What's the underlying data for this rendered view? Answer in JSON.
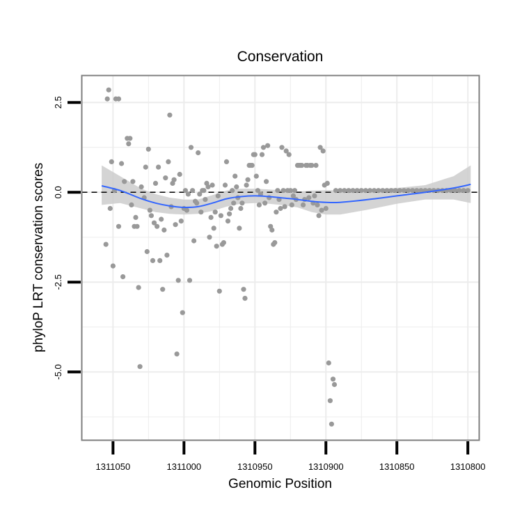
{
  "chart_data": {
    "type": "scatter",
    "title": "Conservation",
    "xlabel": "Genomic Position",
    "ylabel": "phyloP LRT conservation scores",
    "xlim": [
      1311072,
      1310792
    ],
    "ylim": [
      -6.9,
      3.25
    ],
    "x_reversed": true,
    "x_ticks": [
      1311050,
      1311000,
      1310950,
      1310900,
      1310850,
      1310800
    ],
    "x_tick_labels": [
      "1311050",
      "1311000",
      "1310950",
      "1310900",
      "1310850",
      "1310800"
    ],
    "y_ticks": [
      2.5,
      0.0,
      -2.5,
      -5.0
    ],
    "y_tick_labels": [
      "2.5",
      "0.0",
      "-2.5",
      "-5.0"
    ],
    "reference_line": {
      "y": 0,
      "style": "dashed"
    },
    "colors": {
      "points": "#999999",
      "smooth": "#3366ff",
      "band": "#cccccc",
      "panel_border": "#7f7f7f",
      "grid": "#ececec"
    },
    "points": [
      [
        1311054,
        2.6
      ],
      [
        1311053,
        2.85
      ],
      [
        1311048,
        2.6
      ],
      [
        1311046,
        2.6
      ],
      [
        1311051,
        0.85
      ],
      [
        1311049,
        0.05
      ],
      [
        1311052,
        -0.45
      ],
      [
        1311055,
        -1.45
      ],
      [
        1311050,
        -2.05
      ],
      [
        1311046,
        -0.95
      ],
      [
        1311044,
        0.8
      ],
      [
        1311043,
        -2.35
      ],
      [
        1311042,
        0.3
      ],
      [
        1311040,
        1.5
      ],
      [
        1311039,
        1.35
      ],
      [
        1311038,
        1.5
      ],
      [
        1311037,
        -0.35
      ],
      [
        1311036,
        0.3
      ],
      [
        1311035,
        -0.95
      ],
      [
        1311034,
        -0.7
      ],
      [
        1311033,
        -0.95
      ],
      [
        1311032,
        -2.65
      ],
      [
        1311031,
        -4.85
      ],
      [
        1311030,
        0.15
      ],
      [
        1311028,
        -0.15
      ],
      [
        1311027,
        0.7
      ],
      [
        1311026,
        -1.65
      ],
      [
        1311025,
        1.2
      ],
      [
        1311024,
        -0.5
      ],
      [
        1311023,
        -0.65
      ],
      [
        1311022,
        -1.9
      ],
      [
        1311021,
        -0.85
      ],
      [
        1311020,
        0.25
      ],
      [
        1311019,
        -0.95
      ],
      [
        1311018,
        0.7
      ],
      [
        1311017,
        -1.9
      ],
      [
        1311016,
        -0.75
      ],
      [
        1311015,
        -2.7
      ],
      [
        1311014,
        -1.05
      ],
      [
        1311013,
        0.4
      ],
      [
        1311012,
        -1.75
      ],
      [
        1311011,
        0.85
      ],
      [
        1311010,
        2.15
      ],
      [
        1311009,
        -0.4
      ],
      [
        1311008,
        0.25
      ],
      [
        1311007,
        0.35
      ],
      [
        1311006,
        -0.9
      ],
      [
        1311005,
        -4.5
      ],
      [
        1311004,
        -2.45
      ],
      [
        1311003,
        0.5
      ],
      [
        1311002,
        -0.8
      ],
      [
        1311001,
        -3.35
      ],
      [
        1311000,
        -0.45
      ],
      [
        1310999,
        0.05
      ],
      [
        1310998,
        -0.5
      ],
      [
        1310997,
        -0.05
      ],
      [
        1310996,
        -2.45
      ],
      [
        1310995,
        1.25
      ],
      [
        1310994,
        0.05
      ],
      [
        1310993,
        -1.35
      ],
      [
        1310992,
        -0.25
      ],
      [
        1310991,
        -0.3
      ],
      [
        1310990,
        1.1
      ],
      [
        1310989,
        -0.05
      ],
      [
        1310988,
        -0.55
      ],
      [
        1310987,
        0.05
      ],
      [
        1310986,
        0.05
      ],
      [
        1310985,
        -0.2
      ],
      [
        1310984,
        0.25
      ],
      [
        1310983,
        0.15
      ],
      [
        1310982,
        -1.25
      ],
      [
        1310981,
        -0.7
      ],
      [
        1310980,
        0.2
      ],
      [
        1310979,
        -1.0
      ],
      [
        1310978,
        -0.55
      ],
      [
        1310977,
        -1.5
      ],
      [
        1310976,
        -0.1
      ],
      [
        1310975,
        -2.75
      ],
      [
        1310974,
        -0.65
      ],
      [
        1310973,
        -1.45
      ],
      [
        1310972,
        -1.4
      ],
      [
        1310971,
        0.2
      ],
      [
        1310970,
        0.85
      ],
      [
        1310969,
        -0.8
      ],
      [
        1310968,
        -0.6
      ],
      [
        1310967,
        -0.45
      ],
      [
        1310966,
        0.05
      ],
      [
        1310965,
        -0.3
      ],
      [
        1310964,
        0.45
      ],
      [
        1310963,
        0.15
      ],
      [
        1310962,
        -0.15
      ],
      [
        1310961,
        -1.0
      ],
      [
        1310960,
        -0.45
      ],
      [
        1310959,
        -0.3
      ],
      [
        1310958,
        -2.7
      ],
      [
        1310957,
        -2.95
      ],
      [
        1310956,
        0.2
      ],
      [
        1310955,
        0.35
      ],
      [
        1310954,
        0.75
      ],
      [
        1310953,
        0.75
      ],
      [
        1310952,
        0.75
      ],
      [
        1310951,
        1.05
      ],
      [
        1310950,
        1.05
      ],
      [
        1310949,
        0.45
      ],
      [
        1310948,
        0.05
      ],
      [
        1310947,
        -0.35
      ],
      [
        1310946,
        -0.05
      ],
      [
        1310945,
        1.05
      ],
      [
        1310944,
        1.25
      ],
      [
        1310943,
        -0.3
      ],
      [
        1310942,
        0.3
      ],
      [
        1310941,
        1.3
      ],
      [
        1310940,
        -0.15
      ],
      [
        1310939,
        -0.95
      ],
      [
        1310938,
        -1.05
      ],
      [
        1310937,
        -1.45
      ],
      [
        1310936,
        -1.4
      ],
      [
        1310935,
        -0.55
      ],
      [
        1310934,
        0.05
      ],
      [
        1310933,
        -0.2
      ],
      [
        1310932,
        -0.45
      ],
      [
        1310931,
        1.25
      ],
      [
        1310930,
        0.05
      ],
      [
        1310929,
        -0.4
      ],
      [
        1310928,
        1.15
      ],
      [
        1310927,
        0.05
      ],
      [
        1310926,
        1.05
      ],
      [
        1310925,
        0.05
      ],
      [
        1310924,
        -0.35
      ],
      [
        1310923,
        -0.1
      ],
      [
        1310922,
        0.05
      ],
      [
        1310921,
        -0.2
      ],
      [
        1310920,
        0.75
      ],
      [
        1310919,
        0.75
      ],
      [
        1310918,
        0.75
      ],
      [
        1310917,
        0.75
      ],
      [
        1310916,
        -0.35
      ],
      [
        1310915,
        -0.2
      ],
      [
        1310914,
        0.75
      ],
      [
        1310913,
        0.75
      ],
      [
        1310912,
        -0.15
      ],
      [
        1310911,
        0.75
      ],
      [
        1310910,
        0.75
      ],
      [
        1310909,
        -0.3
      ],
      [
        1310908,
        -0.1
      ],
      [
        1310907,
        0.75
      ],
      [
        1310906,
        -0.35
      ],
      [
        1310905,
        -0.65
      ],
      [
        1310904,
        1.25
      ],
      [
        1310903,
        -0.5
      ],
      [
        1310902,
        1.15
      ],
      [
        1310901,
        0.2
      ],
      [
        1310900,
        -0.45
      ],
      [
        1310899,
        0.25
      ],
      [
        1310898,
        -4.75
      ],
      [
        1310897,
        -5.8
      ],
      [
        1310896,
        -6.45
      ],
      [
        1310895,
        -5.2
      ],
      [
        1310894,
        -5.35
      ],
      [
        1310893,
        0.05
      ],
      [
        1310890,
        0.05
      ],
      [
        1310887,
        0.05
      ],
      [
        1310884,
        0.05
      ],
      [
        1310881,
        0.05
      ],
      [
        1310878,
        0.05
      ],
      [
        1310875,
        0.05
      ],
      [
        1310872,
        0.05
      ],
      [
        1310869,
        0.05
      ],
      [
        1310866,
        0.05
      ],
      [
        1310863,
        0.05
      ],
      [
        1310860,
        0.05
      ],
      [
        1310857,
        0.05
      ],
      [
        1310854,
        0.05
      ],
      [
        1310851,
        0.05
      ],
      [
        1310848,
        0.05
      ],
      [
        1310845,
        0.05
      ],
      [
        1310842,
        0.05
      ],
      [
        1310839,
        0.05
      ],
      [
        1310836,
        0.05
      ],
      [
        1310833,
        0.05
      ],
      [
        1310830,
        0.05
      ],
      [
        1310827,
        0.05
      ],
      [
        1310824,
        0.05
      ],
      [
        1310821,
        0.05
      ],
      [
        1310818,
        0.05
      ],
      [
        1310815,
        0.05
      ],
      [
        1310812,
        0.05
      ],
      [
        1310809,
        0.05
      ],
      [
        1310806,
        0.05
      ],
      [
        1310803,
        0.05
      ],
      [
        1310800,
        0.05
      ]
    ],
    "smooth": {
      "x": [
        1311058,
        1311045,
        1311030,
        1311020,
        1311010,
        1311000,
        1310990,
        1310980,
        1310970,
        1310960,
        1310950,
        1310940,
        1310930,
        1310920,
        1310910,
        1310900,
        1310890,
        1310870,
        1310850,
        1310830,
        1310810,
        1310798
      ],
      "y": [
        0.18,
        0.05,
        -0.18,
        -0.3,
        -0.38,
        -0.42,
        -0.4,
        -0.3,
        -0.18,
        -0.12,
        -0.1,
        -0.12,
        -0.16,
        -0.2,
        -0.25,
        -0.28,
        -0.28,
        -0.2,
        -0.1,
        0.0,
        0.12,
        0.22
      ],
      "lower": [
        -0.35,
        -0.3,
        -0.45,
        -0.55,
        -0.6,
        -0.62,
        -0.6,
        -0.52,
        -0.4,
        -0.32,
        -0.3,
        -0.32,
        -0.36,
        -0.42,
        -0.55,
        -0.62,
        -0.62,
        -0.48,
        -0.32,
        -0.2,
        -0.2,
        -0.3
      ],
      "upper": [
        0.75,
        0.45,
        0.1,
        -0.05,
        -0.15,
        -0.2,
        -0.2,
        -0.08,
        0.05,
        0.1,
        0.1,
        0.08,
        0.05,
        0.02,
        0.05,
        0.06,
        0.06,
        0.08,
        0.12,
        0.2,
        0.45,
        0.75
      ]
    }
  }
}
